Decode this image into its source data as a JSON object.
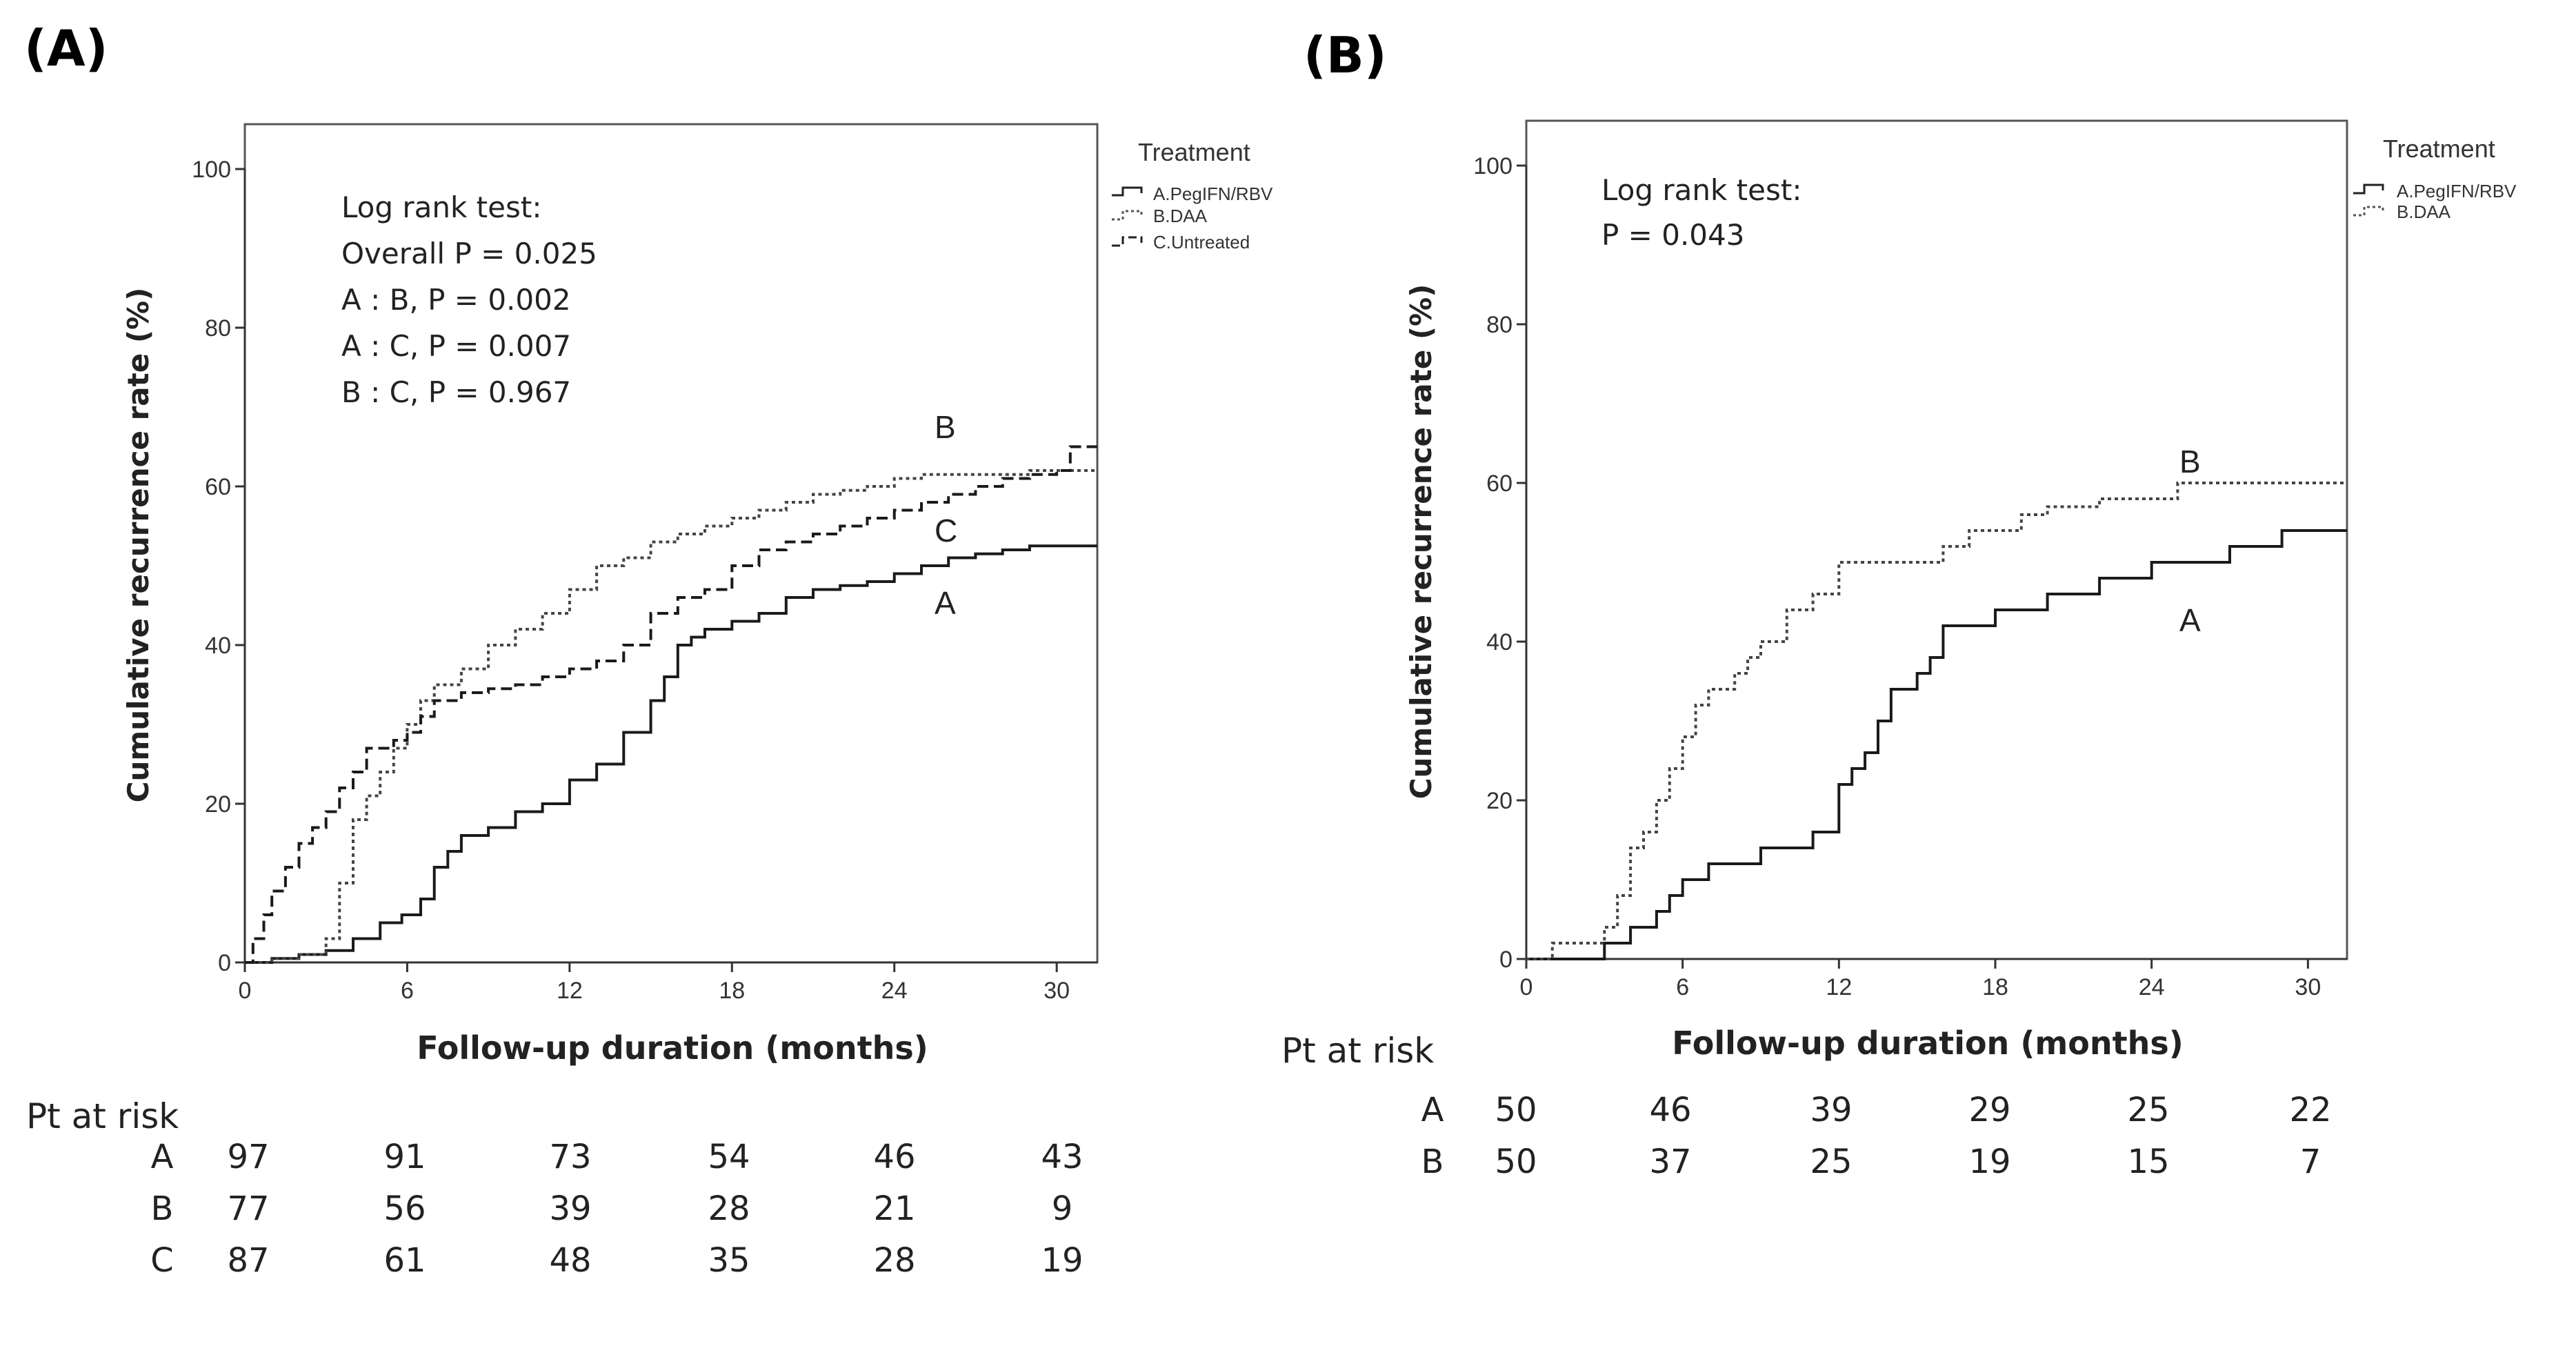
{
  "chart_data": [
    {
      "type": "line",
      "panel": "(A)",
      "xlabel": "Follow-up duration (months)",
      "ylabel": "Cumulative recurrence rate (%)",
      "xlim": [
        0,
        31.5
      ],
      "ylim": [
        0,
        100
      ],
      "x_ticks": [
        "0",
        "6",
        "12",
        "18",
        "24",
        "30"
      ],
      "y_ticks": [
        "0",
        "20",
        "40",
        "60",
        "80",
        "100"
      ],
      "grid": false,
      "legend_title": "Treatment",
      "legend_position": "top-right outside",
      "stats": [
        "Log rank test:",
        "Overall P = 0.025",
        "A : B, P = 0.002",
        "A : C, P = 0.007",
        "B : C, P = 0.967"
      ],
      "series": [
        {
          "name": "A.PegIFN/RBV",
          "label": "A",
          "style": "solid",
          "x": [
            0,
            1,
            2,
            3,
            4,
            5,
            5.8,
            6.5,
            7,
            7.5,
            8,
            9,
            10,
            11,
            12,
            13,
            14,
            15,
            15.5,
            16,
            16.5,
            17,
            18,
            19,
            20,
            21,
            22,
            23,
            24,
            25,
            26,
            27,
            28,
            29,
            30,
            31.5
          ],
          "y": [
            0,
            0.5,
            1,
            1.5,
            3,
            5,
            6,
            8,
            12,
            14,
            16,
            17,
            19,
            20,
            23,
            25,
            29,
            33,
            36,
            40,
            41,
            42,
            43,
            44,
            46,
            47,
            47.5,
            48,
            49,
            50,
            51,
            51.5,
            52,
            52.5,
            52.5,
            52.5
          ]
        },
        {
          "name": "B.DAA",
          "label": "B",
          "style": "dotted",
          "x": [
            0,
            1,
            2,
            3,
            3.5,
            4,
            4.5,
            5,
            5.5,
            6,
            6.5,
            7,
            8,
            9,
            10,
            11,
            12,
            13,
            14,
            15,
            16,
            17,
            18,
            19,
            20,
            21,
            22,
            23,
            24,
            25,
            26,
            27,
            28,
            29,
            30,
            31.5
          ],
          "y": [
            0,
            0.5,
            1,
            3,
            10,
            18,
            21,
            24,
            27,
            30,
            33,
            35,
            37,
            40,
            42,
            44,
            47,
            50,
            51,
            53,
            54,
            55,
            56,
            57,
            58,
            59,
            59.5,
            60,
            61,
            61.5,
            61.5,
            61.5,
            61.5,
            62,
            62,
            62
          ]
        },
        {
          "name": "C.Untreated",
          "label": "C",
          "style": "dashed",
          "x": [
            0,
            0.3,
            0.7,
            1,
            1.5,
            2,
            2.5,
            3,
            3.5,
            4,
            4.5,
            5,
            5.5,
            6,
            6.5,
            7,
            8,
            9,
            10,
            11,
            12,
            13,
            14,
            15,
            16,
            17,
            18,
            19,
            20,
            21,
            22,
            23,
            24,
            25,
            26,
            27,
            28,
            29,
            30,
            30.5,
            31.5
          ],
          "y": [
            0,
            3,
            6,
            9,
            12,
            15,
            17,
            19,
            22,
            24,
            27,
            27,
            28,
            29,
            31,
            33,
            34,
            34.5,
            35,
            36,
            37,
            38,
            40,
            44,
            46,
            47,
            50,
            52,
            53,
            54,
            55,
            56,
            57,
            58,
            59,
            60,
            61,
            61.5,
            62,
            65,
            65
          ]
        }
      ],
      "at_risk": {
        "header": "Pt at risk",
        "columns": [
          "97",
          "91",
          "73",
          "54",
          "46",
          "43"
        ],
        "rows": [
          {
            "label": "A",
            "values": [
              "97",
              "91",
              "73",
              "54",
              "46",
              "43"
            ]
          },
          {
            "label": "B",
            "values": [
              "77",
              "56",
              "39",
              "28",
              "21",
              "9"
            ]
          },
          {
            "label": "C",
            "values": [
              "87",
              "61",
              "48",
              "35",
              "28",
              "19"
            ]
          }
        ]
      }
    },
    {
      "type": "line",
      "panel": "(B)",
      "xlabel": "Follow-up duration (months)",
      "ylabel": "Cumulative recurrence rate (%)",
      "xlim": [
        0,
        31.5
      ],
      "ylim": [
        0,
        100
      ],
      "x_ticks": [
        "0",
        "6",
        "12",
        "18",
        "24",
        "30"
      ],
      "y_ticks": [
        "0",
        "20",
        "40",
        "60",
        "80",
        "100"
      ],
      "grid": false,
      "legend_title": "Treatment",
      "legend_position": "top-right outside",
      "stats": [
        "Log rank test:",
        "P = 0.043"
      ],
      "series": [
        {
          "name": "A.PegIFN/RBV",
          "label": "A",
          "style": "solid",
          "x": [
            0,
            2.8,
            3,
            3.5,
            4,
            4.5,
            5,
            5.5,
            6,
            6.5,
            7,
            8,
            9,
            10,
            11,
            11.8,
            12,
            12.5,
            13,
            13.5,
            14,
            15,
            15.5,
            16,
            17,
            18,
            19,
            20,
            21,
            22,
            23,
            24,
            25,
            26,
            27,
            28,
            29,
            30,
            31.5
          ],
          "y": [
            0,
            0,
            2,
            2,
            4,
            4,
            6,
            8,
            10,
            10,
            12,
            12,
            14,
            14,
            16,
            16,
            22,
            24,
            26,
            30,
            34,
            36,
            38,
            42,
            42,
            44,
            44,
            46,
            46,
            48,
            48,
            50,
            50,
            50,
            52,
            52,
            54,
            54,
            54
          ]
        },
        {
          "name": "B.DAA",
          "label": "B",
          "style": "dotted",
          "x": [
            0,
            1,
            2,
            2.8,
            3,
            3.5,
            4,
            4.5,
            5,
            5.5,
            6,
            6.5,
            7,
            7.5,
            8,
            8.5,
            9,
            10,
            11,
            12,
            13,
            14,
            15,
            16,
            17,
            18,
            19,
            20,
            21,
            22,
            23,
            24,
            25,
            26,
            27,
            28,
            29,
            30,
            31.5
          ],
          "y": [
            0,
            2,
            2,
            2,
            4,
            8,
            14,
            16,
            20,
            24,
            28,
            32,
            34,
            34,
            36,
            38,
            40,
            44,
            46,
            50,
            50,
            50,
            50,
            52,
            54,
            54,
            56,
            57,
            57,
            58,
            58,
            58,
            60,
            60,
            60,
            60,
            60,
            60,
            60
          ]
        }
      ],
      "at_risk": {
        "header": "Pt at risk",
        "rows": [
          {
            "label": "A",
            "values": [
              "50",
              "46",
              "39",
              "29",
              "25",
              "22"
            ]
          },
          {
            "label": "B",
            "values": [
              "50",
              "37",
              "25",
              "19",
              "15",
              "7"
            ]
          }
        ]
      }
    }
  ],
  "annotations": {
    "panelA": {
      "B_label": "B",
      "C_label": "C",
      "A_label": "A"
    },
    "panelB": {
      "B_label": "B",
      "A_label": "A"
    }
  }
}
